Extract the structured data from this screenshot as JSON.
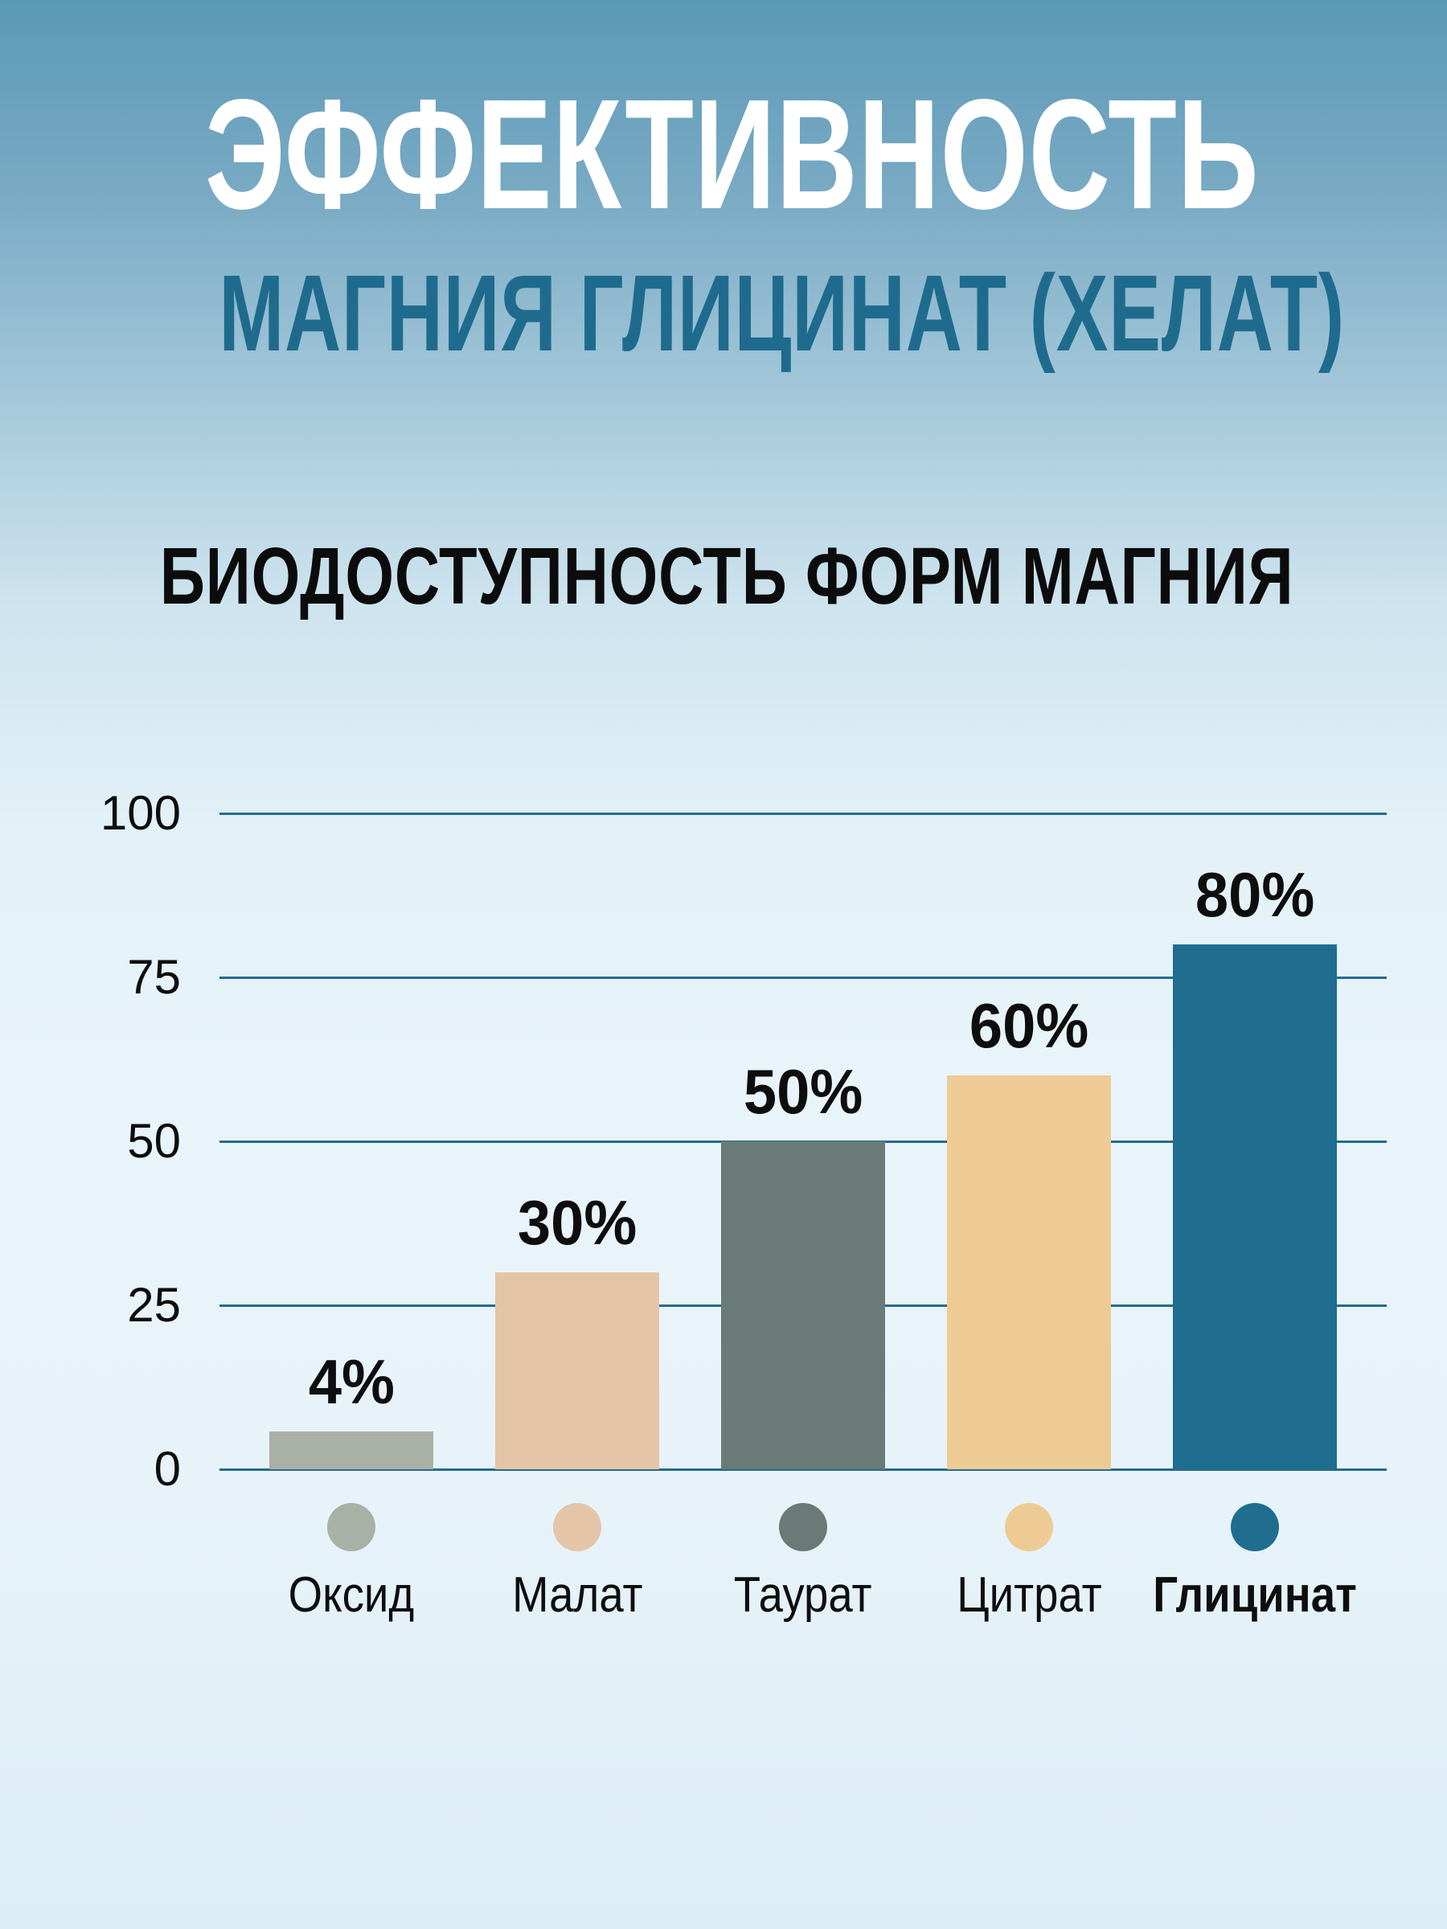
{
  "header": {
    "title_line1": "ЭФФЕКТИВНОСТЬ",
    "title_line2": "МАГНИЯ ГЛИЦИНАТ (ХЕЛАТ)",
    "subtitle": "БИОДОСТУПНОСТЬ ФОРМ МАГНИЯ"
  },
  "colors": {
    "title_line1": "#ffffff",
    "title_line2": "#1f6b8d",
    "subtitle": "#0c0c0c",
    "gridline": "#266b8c",
    "background_top": "#5b99b6",
    "background_middle": "#e9f4fa",
    "background_bottom": "#dcedf6"
  },
  "chart_data": {
    "type": "bar",
    "title": "БИОДОСТУПНОСТЬ ФОРМ МАГНИЯ",
    "categories": [
      "Оксид",
      "Малат",
      "Таурат",
      "Цитрат",
      "Глицинат"
    ],
    "values": [
      4,
      30,
      50,
      60,
      80
    ],
    "value_labels": [
      "4%",
      "30%",
      "50%",
      "60%",
      "80%"
    ],
    "bar_colors": [
      "#a9b0a5",
      "#e4c5a8",
      "#697a77",
      "#eecb94",
      "#1f6e8f"
    ],
    "highlight_category": "Глицинат",
    "xlabel": "",
    "ylabel": "",
    "ylim": [
      0,
      100
    ],
    "yticks": [
      0,
      25,
      50,
      75,
      100
    ],
    "grid": "horizontal",
    "legend_style": "colored-dots-below-bars",
    "legend_position": "bottom"
  }
}
